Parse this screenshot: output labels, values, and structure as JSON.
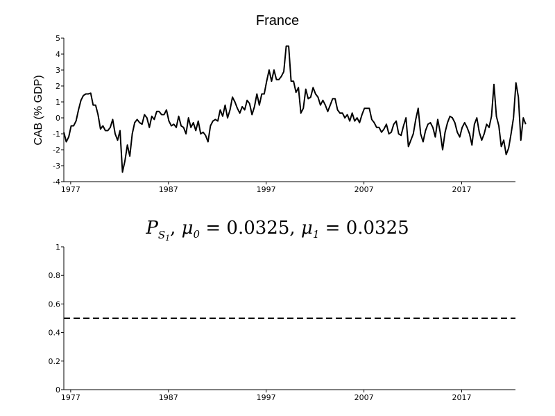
{
  "chart_data": [
    {
      "type": "line",
      "title": "France",
      "xlabel": "",
      "ylabel": "CAB (% GDP)",
      "xlim": [
        1976.3,
        2022.5
      ],
      "ylim": [
        -4,
        5
      ],
      "x_ticks": [
        1977,
        1987,
        1997,
        2007,
        2017
      ],
      "y_ticks": [
        -4,
        -3,
        -2,
        -1,
        0,
        1,
        2,
        3,
        4,
        5
      ],
      "grid": false,
      "series": [
        {
          "name": "",
          "x_start": 1976.3,
          "x_step": 0.25,
          "values": [
            -0.9,
            -1.5,
            -1.2,
            -0.5,
            -0.5,
            -0.2,
            0.5,
            1.1,
            1.4,
            1.5,
            1.5,
            1.55,
            0.8,
            0.8,
            0.2,
            -0.7,
            -0.5,
            -0.8,
            -0.8,
            -0.6,
            -0.1,
            -1.0,
            -1.4,
            -0.8,
            -3.4,
            -2.7,
            -1.7,
            -2.4,
            -1.0,
            -0.3,
            -0.1,
            -0.3,
            -0.4,
            0.2,
            0.0,
            -0.6,
            0.1,
            -0.1,
            0.4,
            0.4,
            0.2,
            0.2,
            0.5,
            -0.2,
            -0.5,
            -0.4,
            -0.6,
            0.1,
            -0.5,
            -0.6,
            -1.0,
            0.0,
            -0.6,
            -0.3,
            -0.8,
            -0.2,
            -1.0,
            -0.9,
            -1.1,
            -1.5,
            -0.5,
            -0.2,
            -0.1,
            -0.2,
            0.5,
            0.1,
            0.8,
            0.0,
            0.5,
            1.3,
            1.0,
            0.6,
            0.3,
            0.7,
            0.5,
            1.1,
            0.9,
            0.2,
            0.7,
            1.5,
            0.8,
            1.5,
            1.5,
            2.3,
            3.0,
            2.3,
            3.0,
            2.4,
            2.4,
            2.6,
            2.9,
            4.5,
            4.5,
            2.3,
            2.3,
            1.6,
            1.9,
            0.3,
            0.6,
            1.8,
            1.2,
            1.3,
            1.9,
            1.5,
            1.3,
            0.8,
            1.1,
            0.8,
            0.4,
            0.8,
            1.2,
            1.2,
            0.5,
            0.3,
            0.3,
            0.0,
            0.2,
            -0.2,
            0.3,
            -0.2,
            0.0,
            -0.3,
            0.2,
            0.6,
            0.6,
            0.6,
            -0.1,
            -0.3,
            -0.6,
            -0.6,
            -0.9,
            -0.7,
            -0.4,
            -1.0,
            -0.9,
            -0.4,
            -0.2,
            -1.0,
            -1.1,
            -0.5,
            0.0,
            -1.8,
            -1.4,
            -1.0,
            -0.1,
            0.6,
            -1.0,
            -1.5,
            -0.8,
            -0.4,
            -0.3,
            -0.6,
            -1.2,
            -0.1,
            -0.9,
            -2.0,
            -0.9,
            -0.3,
            0.1,
            0.0,
            -0.3,
            -0.9,
            -1.2,
            -0.6,
            -0.3,
            -0.6,
            -1.0,
            -1.7,
            -0.4,
            0.0,
            -0.9,
            -1.4,
            -1.0,
            -0.4,
            -0.6,
            0.1,
            2.1,
            0.1,
            -0.5,
            -1.8,
            -1.4,
            -2.3,
            -1.9,
            -1.0,
            0.0,
            2.2,
            1.3,
            -1.4,
            0.0,
            -0.4
          ]
        }
      ]
    },
    {
      "type": "line",
      "title": "",
      "xlabel": "",
      "ylabel": "",
      "xlim": [
        1976.3,
        2022.5
      ],
      "ylim": [
        0,
        1
      ],
      "x_ticks": [
        1977,
        1987,
        1997,
        2007,
        2017
      ],
      "y_ticks": [
        0,
        0.2,
        0.4,
        0.6,
        0.8,
        1
      ],
      "grid": false,
      "series": [
        {
          "name": "",
          "style": "dashed",
          "x": [
            1976.3,
            2022.5
          ],
          "values": [
            0.5,
            0.5
          ]
        }
      ]
    }
  ],
  "title_math": {
    "p": "P",
    "s": "S",
    "s_index": "1",
    "mu": "μ",
    "mu0_index": "0",
    "mu1_index": "1",
    "eq_sign": "=",
    "comma": ",",
    "mu0_value": "0.0325",
    "mu1_value": "0.0325"
  },
  "colors": {
    "line": "#000000",
    "background": "#ffffff"
  }
}
